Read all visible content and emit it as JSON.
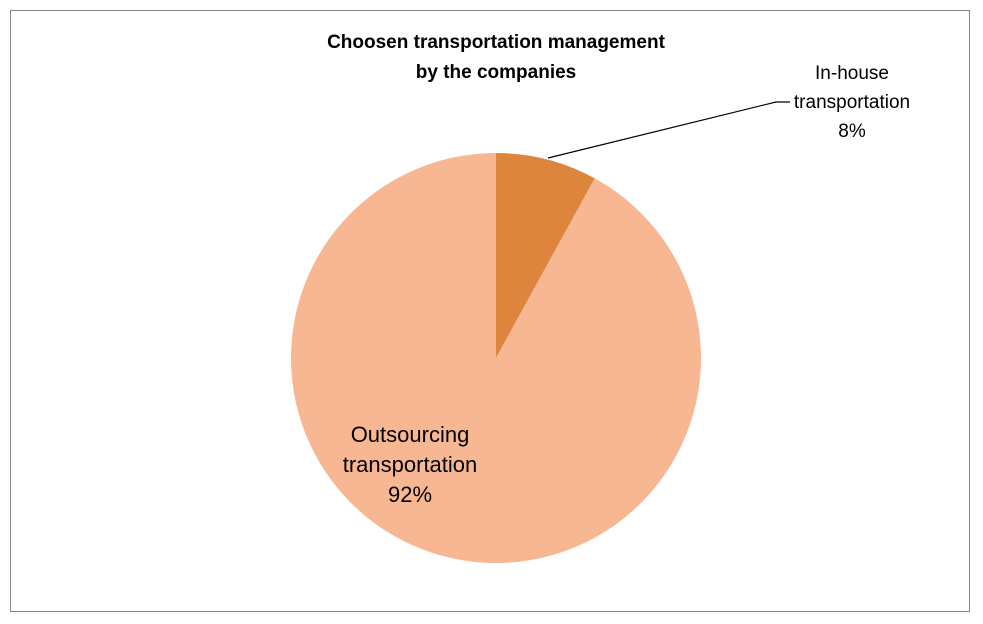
{
  "chart_data": {
    "type": "pie",
    "title_lines": [
      "Choosen transportation management",
      "by the companies"
    ],
    "slices": [
      {
        "label_lines": [
          "In-house",
          "transportation"
        ],
        "value": 8,
        "value_label": "8%",
        "color": "#dd843d"
      },
      {
        "label_lines": [
          "Outsourcing",
          "transportation"
        ],
        "value": 92,
        "value_label": "92%",
        "color": "#f8b793"
      }
    ],
    "start_angle": "12 o'clock",
    "direction": "clockwise",
    "legend": "none"
  }
}
